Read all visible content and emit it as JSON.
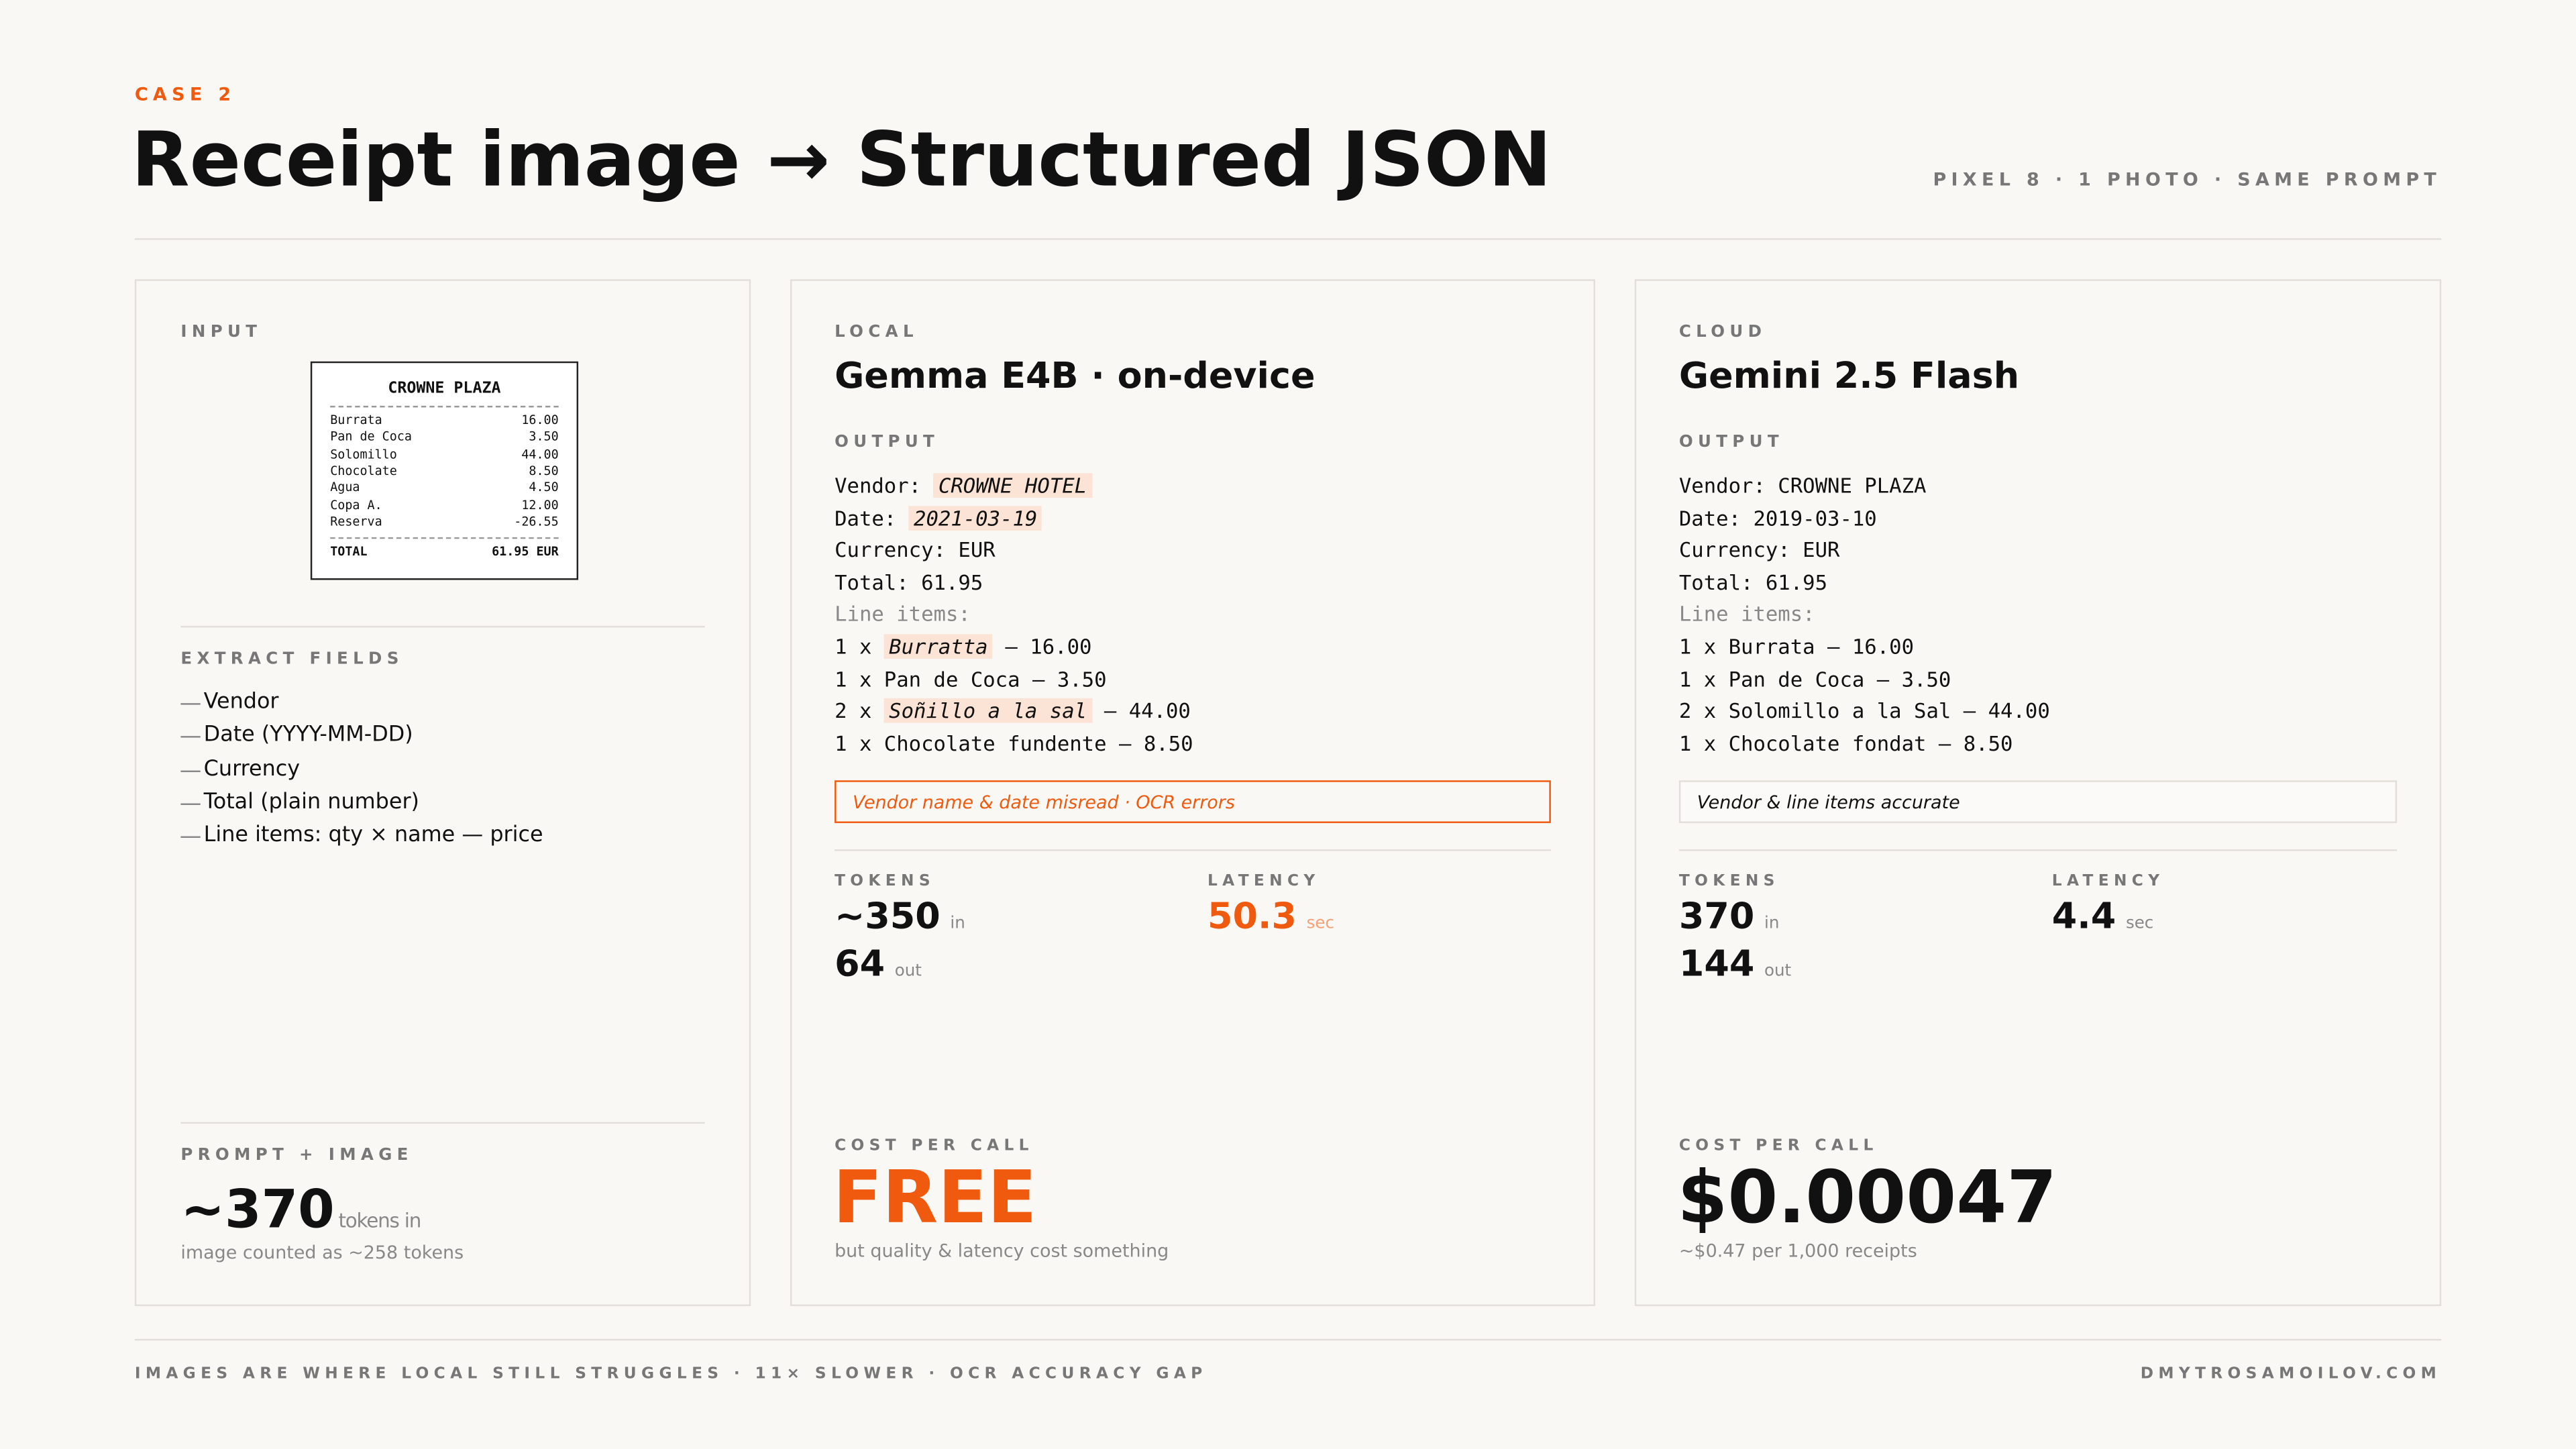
{
  "header": {
    "kicker": "CASE 2",
    "title": "Receipt image → Structured JSON",
    "meta": "PIXEL 8 · 1 PHOTO · SAME PROMPT"
  },
  "input": {
    "label": "INPUT",
    "receipt": {
      "vendor": "CROWNE PLAZA",
      "items": [
        {
          "name": "Burrata",
          "price": "16.00"
        },
        {
          "name": "Pan de Coca",
          "price": "3.50"
        },
        {
          "name": "Solomillo",
          "price": "44.00"
        },
        {
          "name": "Chocolate",
          "price": "8.50"
        },
        {
          "name": "Agua",
          "price": "4.50"
        },
        {
          "name": "Copa A.",
          "price": "12.00"
        },
        {
          "name": "Reserva",
          "price": "-26.55"
        }
      ],
      "total_label": "TOTAL",
      "total_value": "61.95 EUR"
    },
    "fields_label": "EXTRACT FIELDS",
    "fields": [
      "Vendor",
      "Date (YYYY-MM-DD)",
      "Currency",
      "Total (plain number)",
      "Line items: qty × name — price"
    ],
    "prompt_label": "PROMPT + IMAGE",
    "prompt_value": "~370",
    "prompt_unit": "tokens in",
    "prompt_note": "image counted as ~258 tokens"
  },
  "results": [
    {
      "label": "LOCAL",
      "model": "Gemma E4B · on-device",
      "output_label": "OUTPUT",
      "accent": "#f05a0f",
      "lines": [
        [
          {
            "text": "Vendor: "
          },
          {
            "text": "CROWNE HOTEL",
            "error": true
          }
        ],
        [
          {
            "text": "Date: "
          },
          {
            "text": "2021-03-19",
            "error": true
          }
        ],
        [
          {
            "text": "Currency: EUR"
          }
        ],
        [
          {
            "text": "Total: 61.95"
          }
        ],
        [
          {
            "text": "Line items:",
            "muted": true
          }
        ],
        [
          {
            "text": "1 x "
          },
          {
            "text": "Burratta",
            "error": true
          },
          {
            "text": " — 16.00"
          }
        ],
        [
          {
            "text": "1 x Pan de Coca — 3.50"
          }
        ],
        [
          {
            "text": "2 x "
          },
          {
            "text": "Soñillo a la sal",
            "error": true
          },
          {
            "text": " — 44.00"
          }
        ],
        [
          {
            "text": "1 x Chocolate fundente — 8.50"
          }
        ]
      ],
      "note": "Vendor name & date misread · OCR errors",
      "note_bad": true,
      "tokens_label": "TOKENS",
      "tokens_in": "~350",
      "in_unit": "in",
      "tokens_out": "64",
      "out_unit": "out",
      "latency_label": "LATENCY",
      "latency": "50.3",
      "latency_unit": "sec",
      "latency_bad": true,
      "cost_label": "COST PER CALL",
      "cost": "FREE",
      "cost_bad": true,
      "cost_note": "but quality & latency cost something"
    },
    {
      "label": "CLOUD",
      "model": "Gemini 2.5 Flash",
      "output_label": "OUTPUT",
      "accent": "#111111",
      "lines": [
        [
          {
            "text": "Vendor: CROWNE PLAZA"
          }
        ],
        [
          {
            "text": "Date: 2019-03-10"
          }
        ],
        [
          {
            "text": "Currency: EUR"
          }
        ],
        [
          {
            "text": "Total: 61.95"
          }
        ],
        [
          {
            "text": "Line items:",
            "muted": true
          }
        ],
        [
          {
            "text": "1 x Burrata — 16.00"
          }
        ],
        [
          {
            "text": "1 x Pan de Coca — 3.50"
          }
        ],
        [
          {
            "text": "2 x Solomillo a la Sal — 44.00"
          }
        ],
        [
          {
            "text": "1 x Chocolate fondat — 8.50"
          }
        ]
      ],
      "note": "Vendor & line items accurate",
      "note_bad": false,
      "tokens_label": "TOKENS",
      "tokens_in": "370",
      "in_unit": "in",
      "tokens_out": "144",
      "out_unit": "out",
      "latency_label": "LATENCY",
      "latency": "4.4",
      "latency_unit": "sec",
      "latency_bad": false,
      "cost_label": "COST PER CALL",
      "cost": "$0.00047",
      "cost_bad": false,
      "cost_note": "~$0.47 per 1,000 receipts"
    }
  ],
  "footer": {
    "left": "IMAGES ARE WHERE LOCAL STILL STRUGGLES · 11× SLOWER · OCR ACCURACY GAP",
    "right": "DMYTROSAMOILOV.COM"
  }
}
